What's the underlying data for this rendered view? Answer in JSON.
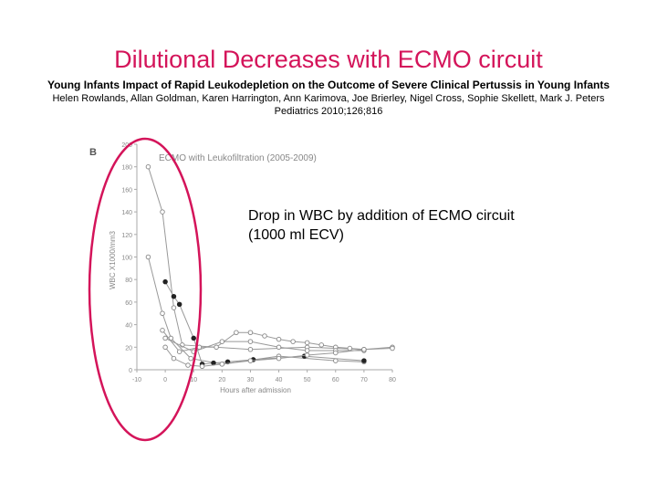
{
  "slide": {
    "title": "Dilutional Decreases with ECMO circuit",
    "subtitle": "Young Infants Impact of Rapid Leukodepletion on the Outcome of Severe Clinical Pertussis in Young Infants",
    "authors": "Helen Rowlands, Allan Goldman, Karen Harrington, Ann Karimova, Joe Brierley, Nigel Cross, Sophie Skellett, Mark J. Peters",
    "citation": "Pediatrics 2010;126;816",
    "callout_line1": "Drop in WBC by addition of ECMO circuit",
    "callout_line2": "(1000 ml ECV)",
    "highlight_color": "#d4145a",
    "title_color": "#d4145a"
  },
  "chart_data": {
    "type": "line",
    "panel_label": "B",
    "title": "ECMO with Leukofiltration (2005-2009)",
    "xlabel": "Hours after admission",
    "ylabel": "WBC X1000/mm3",
    "xlim": [
      -10,
      80
    ],
    "ylim": [
      0,
      200
    ],
    "xticks": [
      "-10",
      "0",
      "10",
      "20",
      "30",
      "40",
      "50",
      "60",
      "70",
      "80"
    ],
    "yticks": [
      "0",
      "20",
      "40",
      "60",
      "80",
      "100",
      "120",
      "140",
      "160",
      "180",
      "200"
    ],
    "series": [
      {
        "marker": "open",
        "points": [
          [
            -6,
            180
          ],
          [
            -1,
            140
          ],
          [
            3,
            55
          ],
          [
            6,
            22
          ],
          [
            30,
            18
          ],
          [
            50,
            20
          ],
          [
            70,
            18
          ],
          [
            80,
            20
          ]
        ]
      },
      {
        "marker": "open",
        "points": [
          [
            -6,
            100
          ],
          [
            -1,
            50
          ],
          [
            2,
            28
          ],
          [
            9,
            10
          ],
          [
            20,
            5
          ],
          [
            40,
            12
          ],
          [
            60,
            8
          ],
          [
            70,
            7
          ]
        ]
      },
      {
        "marker": "filled",
        "points": [
          [
            0,
            78
          ],
          [
            3,
            65
          ],
          [
            5,
            58
          ],
          [
            10,
            28
          ],
          [
            13,
            5
          ],
          [
            17,
            6
          ],
          [
            22,
            7
          ],
          [
            31,
            9
          ],
          [
            49,
            12
          ],
          [
            70,
            8
          ]
        ]
      },
      {
        "marker": "open",
        "points": [
          [
            -1,
            35
          ],
          [
            5,
            16
          ],
          [
            12,
            20
          ],
          [
            18,
            20
          ],
          [
            25,
            33
          ],
          [
            30,
            33
          ],
          [
            35,
            30
          ],
          [
            40,
            27
          ],
          [
            45,
            25
          ],
          [
            50,
            24
          ],
          [
            55,
            22
          ],
          [
            60,
            20
          ],
          [
            65,
            19
          ],
          [
            70,
            18
          ]
        ]
      },
      {
        "marker": "open",
        "points": [
          [
            0,
            28
          ],
          [
            10,
            16
          ],
          [
            20,
            25
          ],
          [
            30,
            25
          ],
          [
            40,
            20
          ],
          [
            50,
            17
          ],
          [
            60,
            17
          ],
          [
            70,
            17
          ]
        ]
      },
      {
        "marker": "open",
        "points": [
          [
            0,
            20
          ],
          [
            3,
            10
          ],
          [
            8,
            4
          ],
          [
            13,
            3
          ],
          [
            20,
            5
          ],
          [
            30,
            8
          ],
          [
            40,
            10
          ],
          [
            50,
            13
          ],
          [
            60,
            15
          ],
          [
            70,
            18
          ],
          [
            80,
            19
          ]
        ]
      }
    ]
  }
}
